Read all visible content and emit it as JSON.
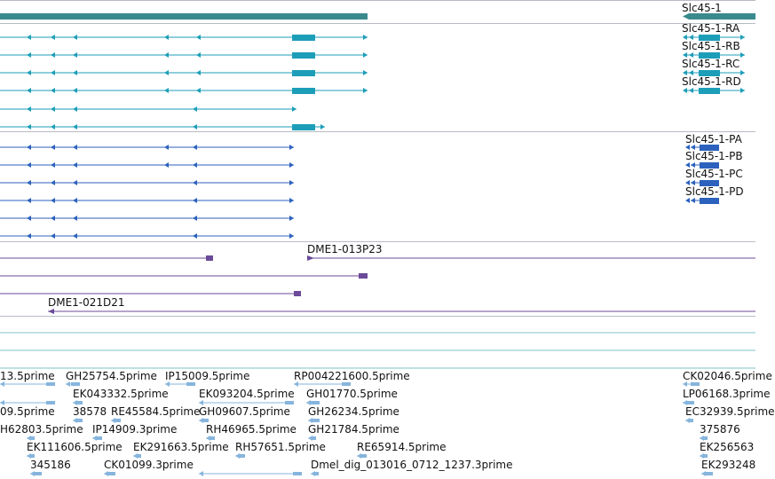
{
  "colors": {
    "gene": "#3a8a8d",
    "transcript_ra": "#1d9eb8",
    "transcript_pa": "#2c62bd",
    "clone": "#6b4a9a",
    "est": "#86b5dd",
    "divider": "#b7bcc2",
    "blank_track": "#7fc3c8"
  },
  "gene": {
    "name": "Slc45-1"
  },
  "transcripts_rna": [
    "Slc45-1-RA",
    "Slc45-1-RB",
    "Slc45-1-RC",
    "Slc45-1-RD"
  ],
  "transcripts_protein": [
    "Slc45-1-PA",
    "Slc45-1-PB",
    "Slc45-1-PC",
    "Slc45-1-PD"
  ],
  "clones": {
    "labels": [
      "DME1-013P23",
      "DME1-021D21"
    ]
  },
  "ests": {
    "row1": [
      "13.5prime",
      "GH25754.5prime",
      "IP15009.5prime",
      "RP004221600.5prime",
      "CK02046.5prime"
    ],
    "row2": [
      "EK043332.5prime",
      "EK093204.5prime",
      "GH01770.5prime",
      "LP06168.3prime"
    ],
    "row3": [
      "09.5prime",
      "38578",
      "RE45584.5prime",
      "GH09607.5prime",
      "GH26234.5prime",
      "EC32939.5prime"
    ],
    "row4": [
      "H62803.5prime",
      "IP14909.3prime",
      "RH46965.5prime",
      "GH21784.5prime",
      "375876"
    ],
    "row5": [
      "EK111606.5prime",
      "EK291663.5prime",
      "RH57651.5prime",
      "RE65914.5prime",
      "EK256563"
    ],
    "row6": [
      "345186",
      "CK01099.3prime",
      "Dmel_dig_013016_0712_1237.3prime",
      "EK293248"
    ]
  }
}
